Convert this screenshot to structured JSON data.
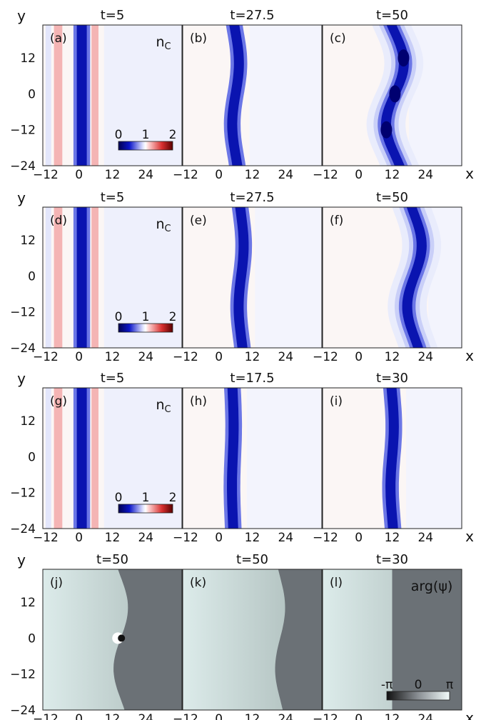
{
  "figure": {
    "axis_labels": {
      "x": "x",
      "y": "y"
    },
    "x_ticks": [
      "−12",
      "0",
      "12",
      "24"
    ],
    "y_ticks": [
      "12",
      "0",
      "−12",
      "−24"
    ],
    "density_colorbar": {
      "ticks": [
        "0",
        "1",
        "2"
      ],
      "label": "n",
      "label_sub": "C"
    },
    "phase_colorbar": {
      "ticks": [
        "-π",
        "0",
        "π"
      ],
      "label": "arg(ψ)"
    },
    "colors": {
      "high_density": "#d93030",
      "low_density": "#0a14b0",
      "background_density": "#fbf6f5",
      "phase_dark": "#6b7176",
      "phase_light": "#dcebea"
    },
    "panels": [
      {
        "tag": "(a)",
        "time": "t=5",
        "kind": "density",
        "row": 0,
        "col": 0,
        "stripe_x": 1,
        "wiggle": 0,
        "vortex_y": null,
        "has_cbar": true,
        "label": true
      },
      {
        "tag": "(b)",
        "time": "t=27.5",
        "kind": "density",
        "row": 0,
        "col": 1,
        "stripe_x": 6,
        "wiggle": 1.2,
        "vortex_y": null,
        "has_cbar": false,
        "label": false
      },
      {
        "tag": "(c)",
        "time": "t=50",
        "kind": "density",
        "row": 0,
        "col": 2,
        "stripe_x": 13,
        "wiggle": 3.2,
        "vortex_y": 0,
        "has_cbar": false,
        "label": false
      },
      {
        "tag": "(d)",
        "time": "t=5",
        "kind": "density",
        "row": 1,
        "col": 0,
        "stripe_x": 1,
        "wiggle": 0,
        "vortex_y": null,
        "has_cbar": true,
        "label": true
      },
      {
        "tag": "(e)",
        "time": "t=27.5",
        "kind": "density",
        "row": 1,
        "col": 1,
        "stripe_x": 8,
        "wiggle": 0.9,
        "vortex_y": null,
        "has_cbar": false,
        "label": false
      },
      {
        "tag": "(f)",
        "time": "t=50",
        "kind": "density",
        "row": 1,
        "col": 2,
        "stripe_x": 20,
        "wiggle": 2.6,
        "vortex_y": null,
        "has_cbar": false,
        "label": false
      },
      {
        "tag": "(g)",
        "time": "t=5",
        "kind": "density",
        "row": 2,
        "col": 0,
        "stripe_x": 1,
        "wiggle": 0,
        "vortex_y": null,
        "has_cbar": true,
        "label": true
      },
      {
        "tag": "(h)",
        "time": "t=17.5",
        "kind": "density",
        "row": 2,
        "col": 1,
        "stripe_x": 5,
        "wiggle": 0.3,
        "vortex_y": null,
        "has_cbar": false,
        "label": false
      },
      {
        "tag": "(i)",
        "time": "t=30",
        "kind": "density",
        "row": 2,
        "col": 2,
        "stripe_x": 12,
        "wiggle": 0.6,
        "vortex_y": null,
        "has_cbar": false,
        "label": false
      },
      {
        "tag": "(j)",
        "time": "t=50",
        "kind": "phase",
        "row": 3,
        "col": 0,
        "stripe_x": 15,
        "wiggle": 2.6,
        "vortex_y": 0,
        "has_cbar": false,
        "label": false
      },
      {
        "tag": "(k)",
        "time": "t=50",
        "kind": "phase",
        "row": 3,
        "col": 1,
        "stripe_x": 22,
        "wiggle": 1.8,
        "vortex_y": null,
        "has_cbar": false,
        "label": false
      },
      {
        "tag": "(l)",
        "time": "t=30",
        "kind": "phase",
        "row": 3,
        "col": 2,
        "stripe_x": 12,
        "wiggle": 0,
        "vortex_y": null,
        "has_cbar": true,
        "label": true
      }
    ]
  }
}
